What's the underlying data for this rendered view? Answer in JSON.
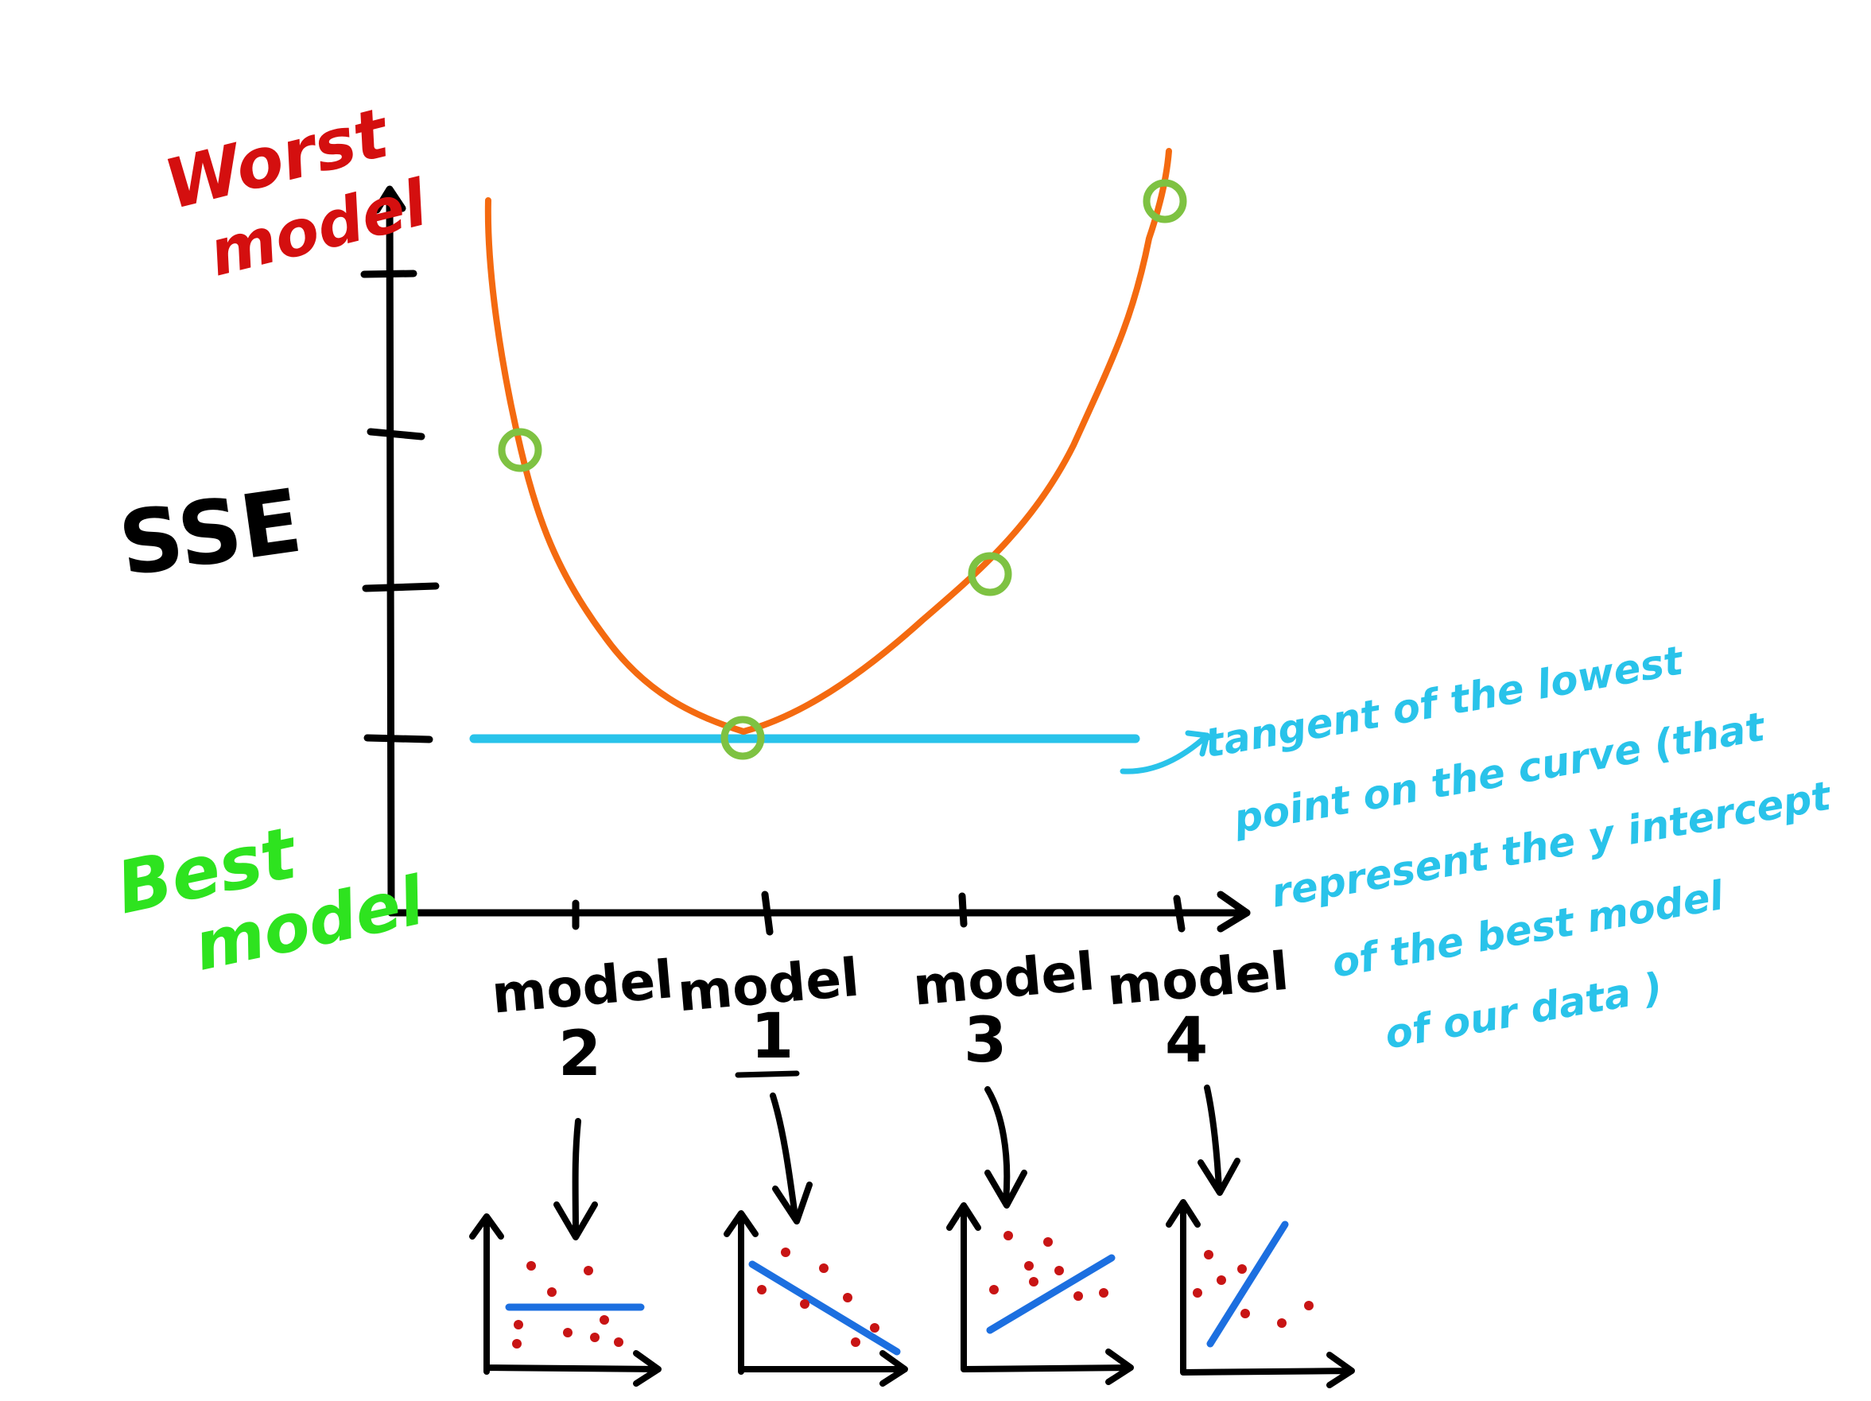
{
  "labels": {
    "worst_line1": "Worst",
    "worst_line2": "model",
    "best_line1": "Best",
    "best_line2": "model",
    "y_axis": "SSE",
    "models": [
      {
        "word": "model",
        "number": "2"
      },
      {
        "word": "model",
        "number": "1"
      },
      {
        "word": "model",
        "number": "3"
      },
      {
        "word": "model",
        "number": "4"
      }
    ],
    "annotation": [
      "tangent of the lowest",
      "point on the curve (that",
      "represent the y intercept",
      "of the best model",
      "of our data )"
    ]
  },
  "colors": {
    "axes": "#000000",
    "curve": "#f46a10",
    "marker": "#7ec242",
    "tangent": "#29c3ea",
    "worst": "#d40f0f",
    "best": "#2ee31f",
    "fit_line": "#1c6fe0",
    "dots": "#c81414"
  }
}
